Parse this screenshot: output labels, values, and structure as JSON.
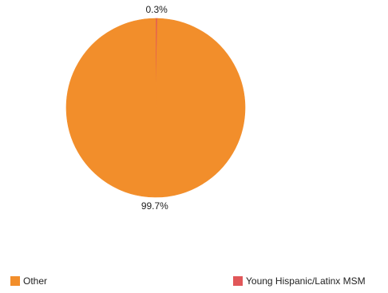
{
  "chart_data": {
    "type": "pie",
    "slices": [
      {
        "name": "Young Hispanic/Latinx MSM",
        "value": 0.3,
        "label": "0.3%",
        "color": "#e15759"
      },
      {
        "name": "Other",
        "value": 99.7,
        "label": "99.7%",
        "color": "#f28e2b"
      }
    ],
    "legend": {
      "placement": "bottom",
      "items": [
        {
          "label": "Other",
          "color": "#f28e2b"
        },
        {
          "label": "Young Hispanic/Latinx MSM",
          "color": "#e15759"
        }
      ]
    }
  }
}
